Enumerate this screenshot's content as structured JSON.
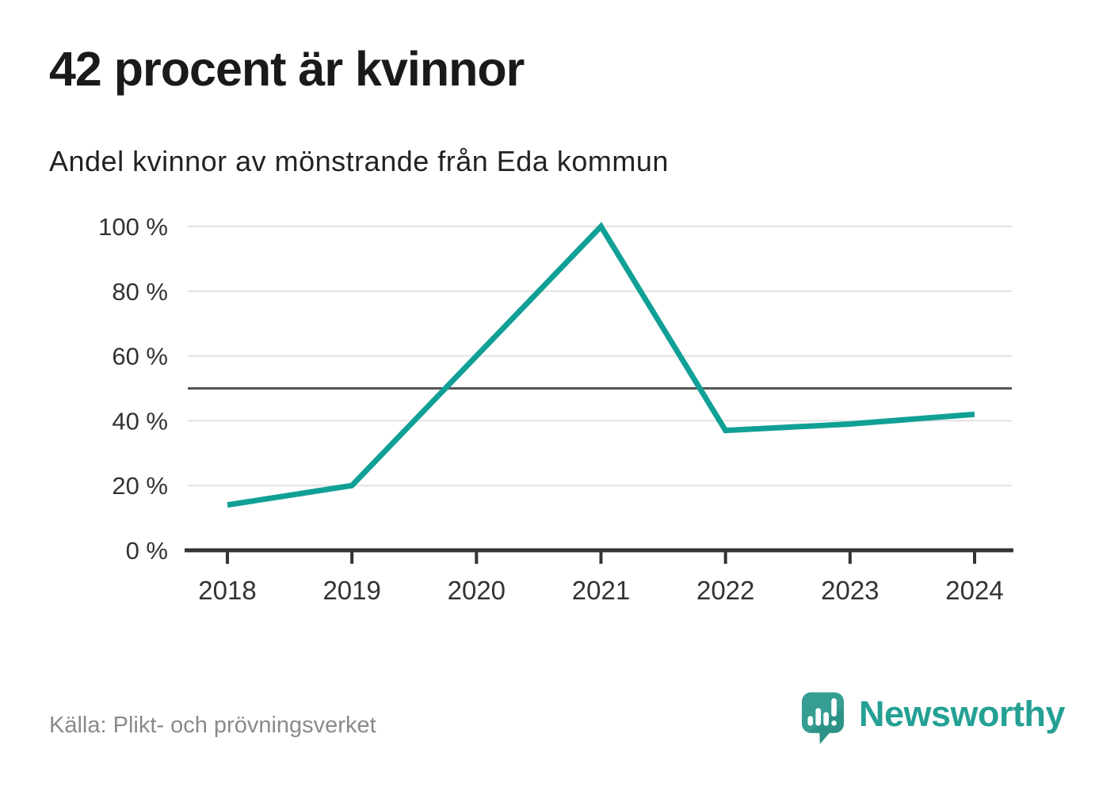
{
  "page": {
    "title": "42 procent är kvinnor",
    "subtitle": "Andel kvinnor av mönstrande från Eda kommun",
    "source": "Källa: Plikt- och prövningsverket",
    "brand_name": "Newsworthy"
  },
  "colors": {
    "title": "#1a1a1a",
    "subtitle": "#222222",
    "line": "#10a096",
    "grid": "#e2e2e2",
    "reference": "#555555",
    "axis": "#333333",
    "tick_label": "#333333",
    "source": "#8a8a8a",
    "brand": "#25a094",
    "logo": "#369d92",
    "logo_shade": "#23877d"
  },
  "chart_data": {
    "type": "line",
    "x": [
      2018,
      2019,
      2020,
      2021,
      2022,
      2023,
      2024
    ],
    "series": [
      {
        "name": "Andel kvinnor av mönstrande",
        "values": [
          14,
          20,
          60,
          100,
          37,
          39,
          42
        ]
      }
    ],
    "title": "42 procent är kvinnor",
    "subtitle": "Andel kvinnor av mönstrande från Eda kommun",
    "xlabel": "",
    "ylabel": "",
    "ylim": [
      0,
      100
    ],
    "yticks": [
      0,
      20,
      40,
      60,
      80,
      100
    ],
    "ytick_suffix": " %",
    "reference_line": 50,
    "grid": true,
    "legend": false
  }
}
